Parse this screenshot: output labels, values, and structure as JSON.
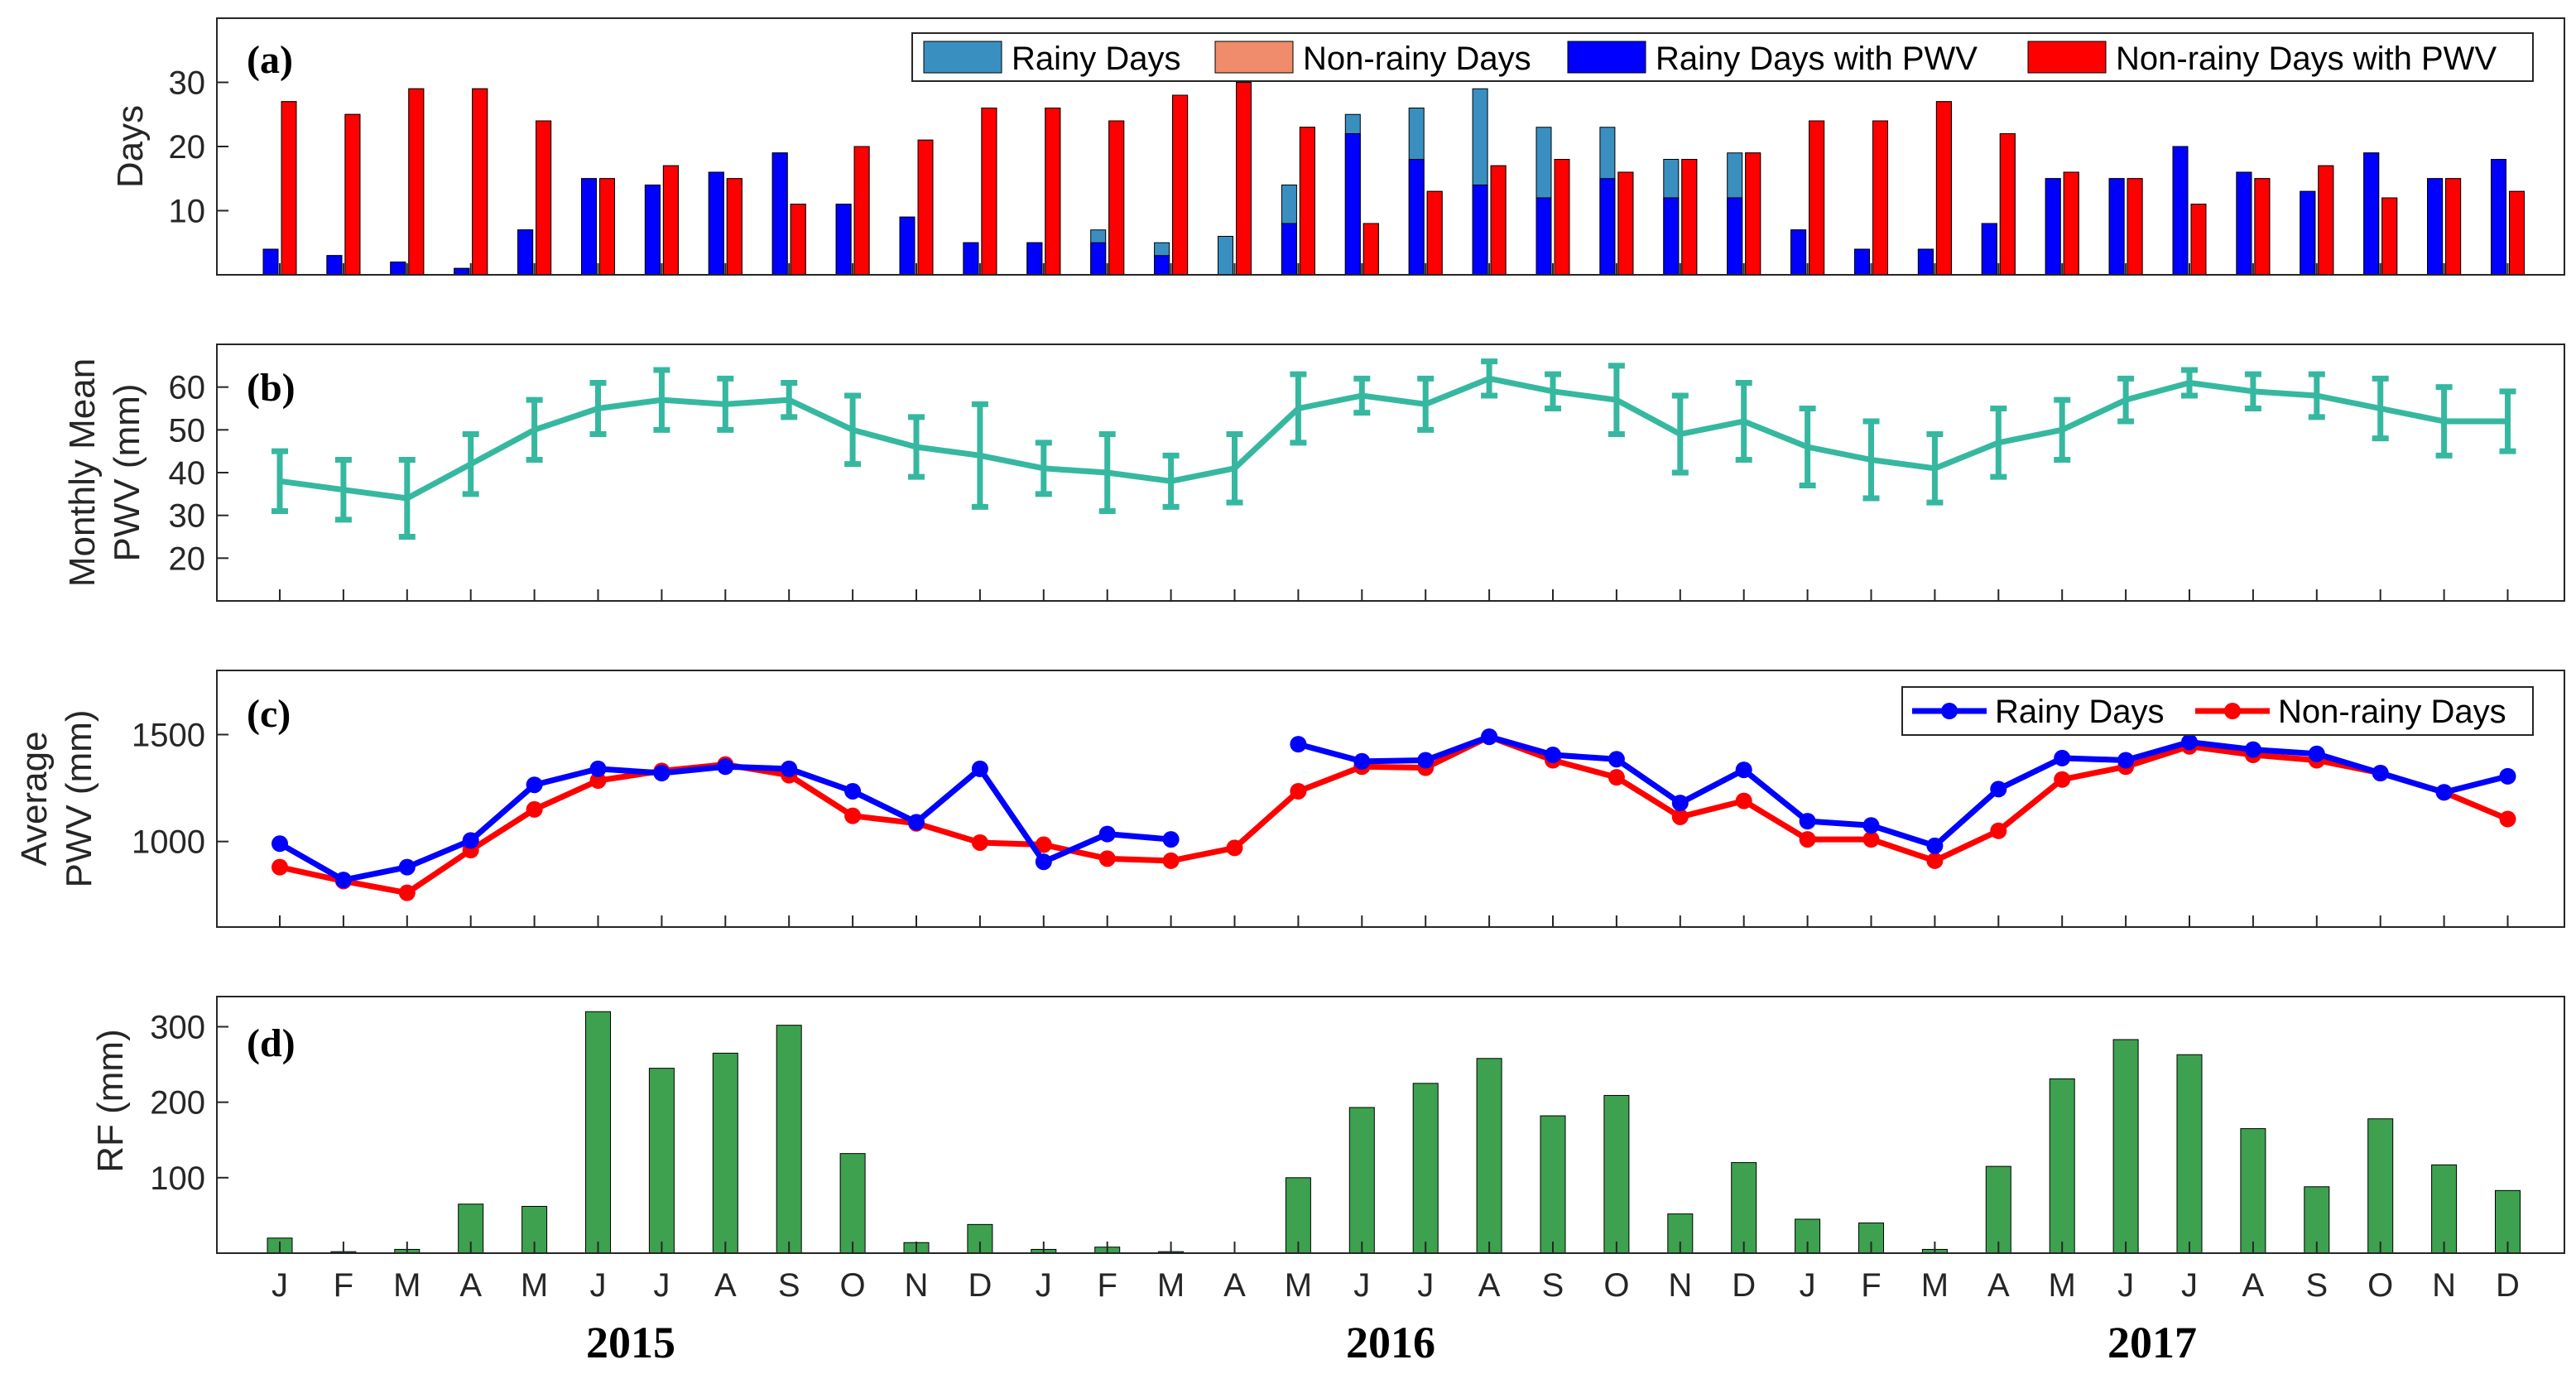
{
  "colors": {
    "rainy": "#3a8fc1",
    "nonrainy": "#f08c6c",
    "rainy_pwv": "#0000ff",
    "nonrainy_pwv": "#ff0000",
    "pwv_line": "#36b8a0",
    "rf": "#3da14f"
  },
  "years": [
    "2015",
    "2016",
    "2017"
  ],
  "chart_data": [
    {
      "id": "a",
      "panel": "(a)",
      "type": "bar",
      "ylabel": "Days",
      "ylim": [
        0,
        40
      ],
      "yticks": [
        10,
        20,
        30
      ],
      "legend": [
        "Rainy Days",
        "Non-rainy Days",
        "Rainy Days with PWV",
        "Non-rainy Days with PWV"
      ],
      "categories": [
        "J",
        "F",
        "M",
        "A",
        "M",
        "J",
        "J",
        "A",
        "S",
        "O",
        "N",
        "D",
        "J",
        "F",
        "M",
        "A",
        "M",
        "J",
        "J",
        "A",
        "S",
        "O",
        "N",
        "D",
        "J",
        "F",
        "M",
        "A",
        "M",
        "J",
        "J",
        "A",
        "S",
        "O",
        "N",
        "D"
      ],
      "series": [
        {
          "name": "Rainy Days",
          "values": [
            4,
            3,
            2,
            1,
            7,
            15,
            14,
            16,
            19,
            11,
            9,
            5,
            5,
            7,
            5,
            6,
            14,
            25,
            26,
            29,
            23,
            23,
            18,
            19,
            7,
            4,
            4,
            8,
            15,
            15,
            20,
            16,
            13,
            19,
            15,
            18
          ]
        },
        {
          "name": "Non-rainy Days",
          "values": [
            27,
            25,
            29,
            29,
            24,
            15,
            17,
            15,
            11,
            20,
            21,
            26,
            26,
            24,
            28,
            30,
            23,
            8,
            13,
            17,
            18,
            16,
            18,
            19,
            24,
            24,
            27,
            22,
            16,
            15,
            11,
            15,
            17,
            12,
            15,
            13
          ]
        },
        {
          "name": "Rainy Days with PWV",
          "values": [
            4,
            3,
            2,
            1,
            7,
            15,
            14,
            16,
            19,
            11,
            9,
            5,
            5,
            5,
            3,
            0,
            8,
            22,
            18,
            14,
            12,
            15,
            12,
            12,
            7,
            4,
            4,
            8,
            15,
            15,
            20,
            16,
            13,
            19,
            15,
            18
          ]
        },
        {
          "name": "Non-rainy Days with PWV",
          "values": [
            27,
            25,
            29,
            29,
            24,
            15,
            17,
            15,
            11,
            20,
            21,
            26,
            26,
            24,
            28,
            30,
            23,
            8,
            13,
            17,
            18,
            16,
            18,
            19,
            24,
            24,
            27,
            22,
            16,
            15,
            11,
            15,
            17,
            12,
            15,
            13
          ]
        }
      ]
    },
    {
      "id": "b",
      "panel": "(b)",
      "type": "line",
      "ylabel": [
        "Monthly Mean",
        "PWV (mm)"
      ],
      "ylim": [
        10,
        70
      ],
      "yticks": [
        20,
        30,
        40,
        50,
        60
      ],
      "series": [
        {
          "name": "Monthly Mean PWV",
          "values": [
            38,
            36,
            34,
            42,
            50,
            55,
            57,
            56,
            57,
            50,
            46,
            44,
            41,
            40,
            38,
            41,
            55,
            58,
            56,
            62,
            59,
            57,
            49,
            52,
            46,
            43,
            41,
            47,
            50,
            57,
            61,
            59,
            58,
            55,
            52,
            52
          ],
          "errors": [
            7,
            7,
            9,
            7,
            7,
            6,
            7,
            6,
            4,
            8,
            7,
            12,
            6,
            9,
            6,
            8,
            8,
            4,
            6,
            4,
            4,
            8,
            9,
            9,
            9,
            9,
            8,
            8,
            7,
            5,
            3,
            4,
            5,
            7,
            8,
            7
          ]
        }
      ]
    },
    {
      "id": "c",
      "panel": "(c)",
      "type": "line",
      "ylabel": [
        "Average",
        "PWV (mm)"
      ],
      "ylim": [
        600,
        1800
      ],
      "yticks": [
        1000,
        1500
      ],
      "legend": [
        "Rainy Days",
        "Non-rainy Days"
      ],
      "series": [
        {
          "name": "Rainy Days",
          "values": [
            990,
            820,
            880,
            1005,
            1265,
            1340,
            1320,
            1350,
            1340,
            1235,
            1090,
            1340,
            905,
            1035,
            1010,
            null,
            1455,
            1375,
            1380,
            1490,
            1405,
            1385,
            1180,
            1335,
            1095,
            1075,
            980,
            1245,
            1390,
            1380,
            1465,
            1430,
            1410,
            1320,
            1230,
            1305
          ]
        },
        {
          "name": "Non-rainy Days",
          "values": [
            880,
            815,
            760,
            960,
            1150,
            1285,
            1330,
            1360,
            1310,
            1120,
            1085,
            995,
            985,
            920,
            910,
            970,
            1235,
            1350,
            1345,
            1490,
            1380,
            1300,
            1115,
            1190,
            1010,
            1010,
            910,
            1050,
            1290,
            1350,
            1445,
            1405,
            1380,
            1320,
            1230,
            1105
          ]
        }
      ]
    },
    {
      "id": "d",
      "panel": "(d)",
      "type": "bar",
      "ylabel": "RF (mm)",
      "ylim": [
        0,
        340
      ],
      "yticks": [
        100,
        200,
        300
      ],
      "xticklabels": [
        "J",
        "F",
        "M",
        "A",
        "M",
        "J",
        "J",
        "A",
        "S",
        "O",
        "N",
        "D",
        "J",
        "F",
        "M",
        "A",
        "M",
        "J",
        "J",
        "A",
        "S",
        "O",
        "N",
        "D",
        "J",
        "F",
        "M",
        "A",
        "M",
        "J",
        "J",
        "A",
        "S",
        "O",
        "N",
        "D"
      ],
      "values": [
        20,
        2,
        5,
        65,
        62,
        320,
        245,
        265,
        302,
        132,
        14,
        38,
        5,
        8,
        2,
        0,
        100,
        193,
        225,
        258,
        182,
        209,
        52,
        120,
        45,
        40,
        5,
        115,
        231,
        283,
        263,
        165,
        88,
        178,
        117,
        83
      ]
    }
  ]
}
